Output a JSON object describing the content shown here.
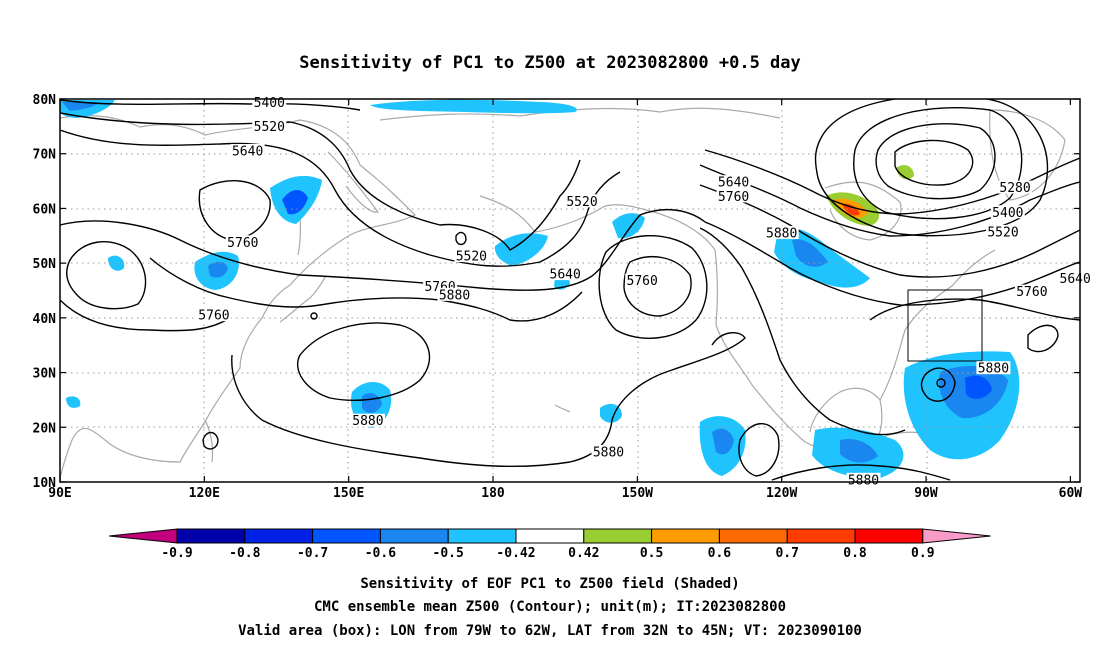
{
  "title": "Sensitivity of PC1 to Z500 at 2023082800 +0.5 day",
  "map": {
    "lon_range": [
      90,
      302
    ],
    "lat_range": [
      10,
      80
    ],
    "x_ticks": [
      {
        "lon": 90,
        "label": "90E"
      },
      {
        "lon": 120,
        "label": "120E"
      },
      {
        "lon": 150,
        "label": "150E"
      },
      {
        "lon": 180,
        "label": "180"
      },
      {
        "lon": 210,
        "label": "150W"
      },
      {
        "lon": 240,
        "label": "120W"
      },
      {
        "lon": 270,
        "label": "90W"
      },
      {
        "lon": 300,
        "label": "60W"
      }
    ],
    "y_ticks": [
      {
        "lat": 80,
        "label": "80N"
      },
      {
        "lat": 70,
        "label": "70N"
      },
      {
        "lat": 60,
        "label": "60N"
      },
      {
        "lat": 50,
        "label": "50N"
      },
      {
        "lat": 40,
        "label": "40N"
      },
      {
        "lat": 30,
        "label": "30N"
      },
      {
        "lat": 20,
        "label": "20N"
      },
      {
        "lat": 10,
        "label": "10N"
      }
    ],
    "grid": "dotted",
    "coastline_color": "#aaaaaa",
    "contour_color": "#000000",
    "valid_box": {
      "lon_w": 281,
      "lon_e": 298,
      "lat_s": 32,
      "lat_n": 45
    },
    "contour_labels": [
      {
        "text": "5400",
        "lon": 133.5,
        "lat": 79.4
      },
      {
        "text": "5520",
        "lon": 133.5,
        "lat": 75.0
      },
      {
        "text": "5640",
        "lon": 129.0,
        "lat": 70.5
      },
      {
        "text": "5760",
        "lon": 128.0,
        "lat": 53.8
      },
      {
        "text": "5760",
        "lon": 122.0,
        "lat": 40.5
      },
      {
        "text": "5520",
        "lon": 175.5,
        "lat": 51.3
      },
      {
        "text": "5520",
        "lon": 198.5,
        "lat": 61.3
      },
      {
        "text": "5640",
        "lon": 195.0,
        "lat": 48.0
      },
      {
        "text": "5760",
        "lon": 169.0,
        "lat": 45.7
      },
      {
        "text": "5880",
        "lon": 172.0,
        "lat": 44.2
      },
      {
        "text": "5760",
        "lon": 211.0,
        "lat": 46.8
      },
      {
        "text": "5640",
        "lon": 230.0,
        "lat": 64.8
      },
      {
        "text": "5760",
        "lon": 230.0,
        "lat": 62.2
      },
      {
        "text": "5880",
        "lon": 240.0,
        "lat": 55.5
      },
      {
        "text": "5280",
        "lon": 288.5,
        "lat": 63.8
      },
      {
        "text": "5400",
        "lon": 287.0,
        "lat": 59.3
      },
      {
        "text": "5520",
        "lon": 286.0,
        "lat": 55.7
      },
      {
        "text": "5640",
        "lon": 301.0,
        "lat": 47.2
      },
      {
        "text": "5760",
        "lon": 292.0,
        "lat": 44.8
      },
      {
        "text": "5880",
        "lon": 284.0,
        "lat": 30.8
      },
      {
        "text": "5880",
        "lon": 154.0,
        "lat": 21.2
      },
      {
        "text": "5880",
        "lon": 204.0,
        "lat": 15.5
      },
      {
        "text": "5880",
        "lon": 257.0,
        "lat": 10.4
      }
    ]
  },
  "colorbar": {
    "labels": [
      "-0.9",
      "-0.8",
      "-0.7",
      "-0.6",
      "-0.5",
      "-0.42",
      "0.42",
      "0.5",
      "0.6",
      "0.7",
      "0.8",
      "0.9"
    ],
    "colors": [
      "#c0007c",
      "#0000aa",
      "#0022e6",
      "#0055ff",
      "#1a86f0",
      "#1fc4ff",
      "#ffffff",
      "#9acd32",
      "#ff9d00",
      "#ff6a00",
      "#ff3c00",
      "#ff0000",
      "#f79cc8"
    ]
  },
  "caption": {
    "line1": "Sensitivity of EOF PC1 to Z500 field (Shaded)",
    "line2": "CMC ensemble mean Z500 (Contour); unit(m); IT:2023082800",
    "line3": "Valid area (box): LON from 79W to 62W, LAT from 32N to 45N; VT: 2023090100"
  }
}
